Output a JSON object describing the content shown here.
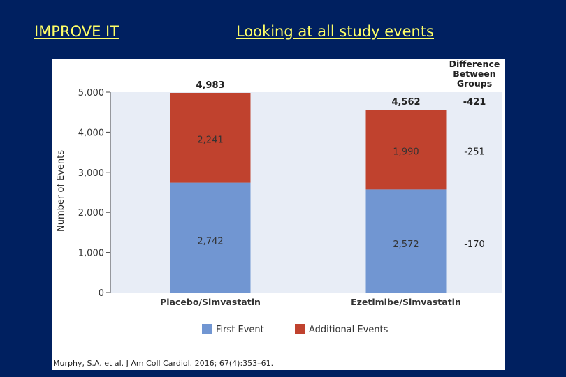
{
  "slide": {
    "title_left": "IMPROVE IT",
    "title_right": "Looking at all study events"
  },
  "citation": "Murphy, S.A. et al. J Am Coll Cardiol. 2016; 67(4):353–61.",
  "difference_header": [
    "Difference",
    "Between",
    "Groups"
  ],
  "colors": {
    "background": "#002060",
    "title_text": "#ffff66",
    "plot_area": "#e8edf6",
    "first_event": "#7196d2",
    "additional_events": "#c0422e"
  },
  "chart_data": {
    "type": "bar",
    "stacked": true,
    "title": "",
    "xlabel": "",
    "ylabel": "Number of Events",
    "ylim": [
      0,
      5000
    ],
    "yticks": [
      0,
      1000,
      2000,
      3000,
      4000,
      5000
    ],
    "ytick_labels": [
      "0",
      "1,000",
      "2,000",
      "3,000",
      "4,000",
      "5,000"
    ],
    "categories": [
      "Placebo/Simvastatin",
      "Ezetimibe/Simvastatin"
    ],
    "series": [
      {
        "name": "First Event",
        "values": [
          2742,
          2572
        ],
        "labels": [
          "2,742",
          "2,572"
        ],
        "color": "#7196d2"
      },
      {
        "name": "Additional Events",
        "values": [
          2241,
          1990
        ],
        "labels": [
          "2,241",
          "1,990"
        ],
        "color": "#c0422e"
      }
    ],
    "totals": [
      4983,
      4562
    ],
    "total_labels": [
      "4,983",
      "4,562"
    ],
    "differences": {
      "total": "-421",
      "additional_events": "-251",
      "first_event": "-170"
    },
    "grid": false,
    "legend": "bottom"
  }
}
